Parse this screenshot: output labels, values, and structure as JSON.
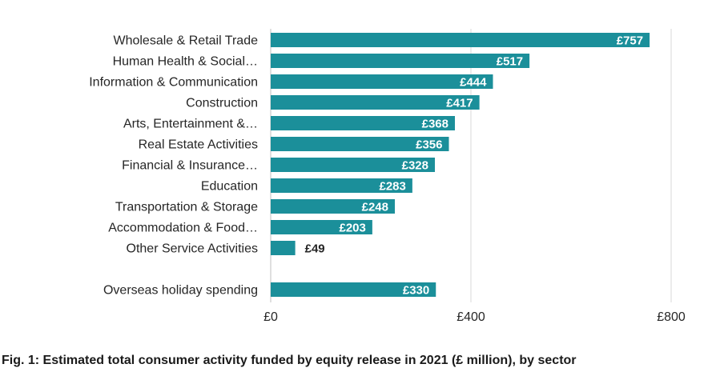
{
  "chart_data": {
    "type": "bar",
    "orientation": "horizontal",
    "categories": [
      "Wholesale & Retail Trade",
      "Human Health & Social…",
      "Information & Communication",
      "Construction",
      "Arts, Entertainment &…",
      "Real Estate Activities",
      "Financial & Insurance…",
      "Education",
      "Transportation & Storage",
      "Accommodation & Food…",
      "Other Service Activities",
      "Overseas holiday spending"
    ],
    "values": [
      757,
      517,
      444,
      417,
      368,
      356,
      328,
      283,
      248,
      203,
      49,
      330
    ],
    "value_labels": [
      "£757",
      "£517",
      "£444",
      "£417",
      "£368",
      "£356",
      "£328",
      "£283",
      "£248",
      "£203",
      "£49",
      "£330"
    ],
    "xlim": [
      0,
      800
    ],
    "xticks": [
      0,
      400,
      800
    ],
    "xtick_labels": [
      "£0",
      "£400",
      "£800"
    ],
    "bar_color": "#1b8f9a",
    "grid": true,
    "title": "Fig. 1: Estimated total consumer activity funded by equity release in 2021 (£ million), by sector"
  }
}
